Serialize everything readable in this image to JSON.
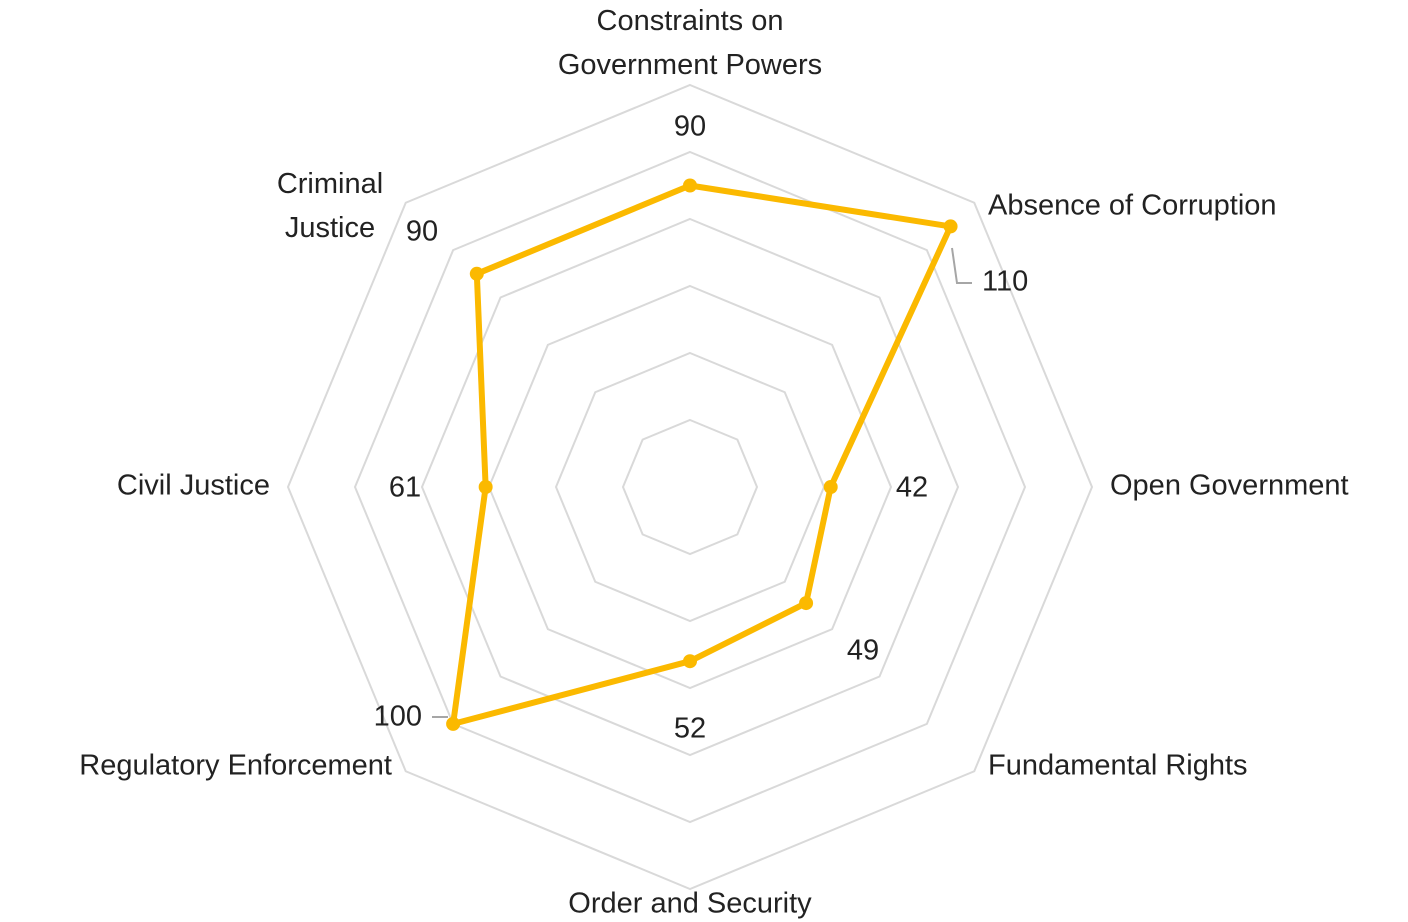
{
  "chart_data": {
    "type": "radar",
    "categories": [
      "Constraints on Government Powers",
      "Absence of Corruption",
      "Open Government",
      "Fundamental Rights",
      "Order and Security",
      "Regulatory Enforcement",
      "Civil Justice",
      "Criminal Justice"
    ],
    "series": [
      {
        "color": "#fbb900",
        "values": [
          90,
          110,
          42,
          49,
          52,
          100,
          61,
          90
        ]
      }
    ],
    "ylim": [
      0,
      120
    ],
    "yticks": [
      0,
      20,
      40,
      60,
      80,
      100,
      120
    ],
    "grid": true
  }
}
